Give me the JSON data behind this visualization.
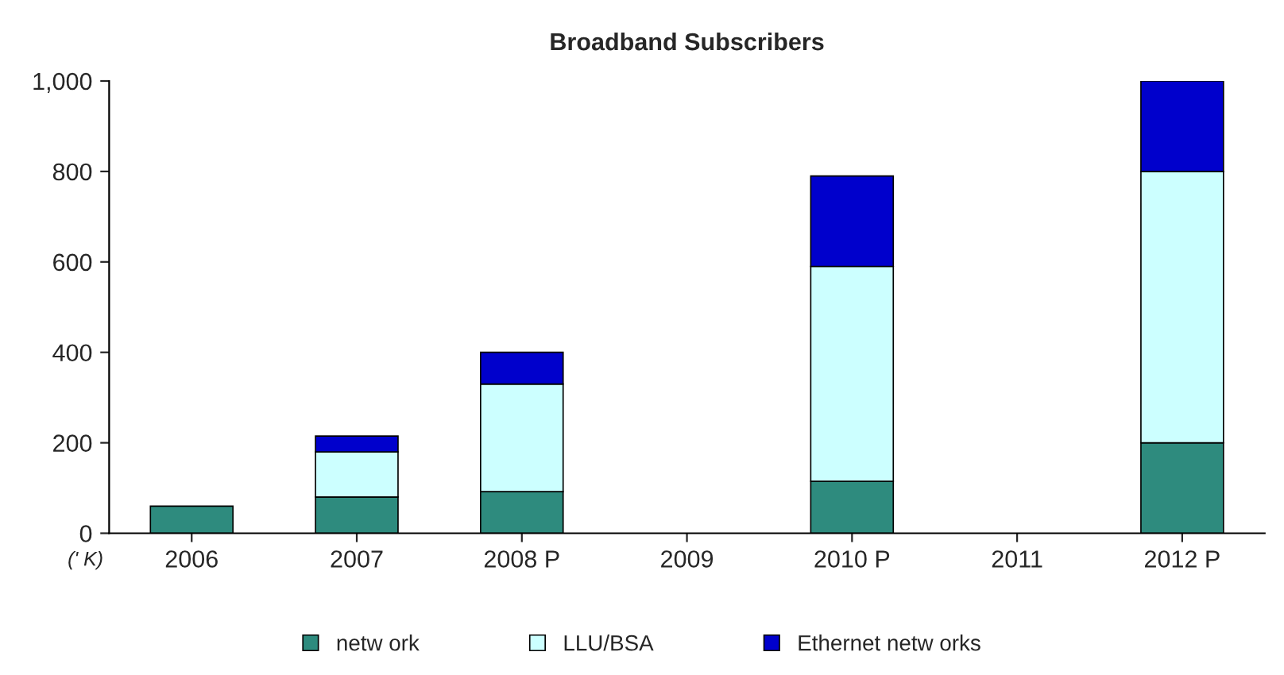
{
  "chart_data": {
    "type": "bar",
    "title": "Broadband Subscribers",
    "stacked": true,
    "categories": [
      "2006",
      "2007",
      "2008 P",
      "2009",
      "2010 P",
      "2011",
      "2012 P"
    ],
    "series": [
      {
        "name": "netw ork",
        "color": "#2e8b7e",
        "values": [
          60,
          80,
          92,
          null,
          115,
          null,
          200
        ]
      },
      {
        "name": "LLU/BSA",
        "color": "#ccffff",
        "values": [
          null,
          100,
          238,
          null,
          475,
          null,
          600
        ]
      },
      {
        "name": "Ethernet netw orks",
        "color": "#0000cc",
        "values": [
          null,
          35,
          70,
          null,
          200,
          null,
          200
        ]
      }
    ],
    "ylim": [
      0,
      1000
    ],
    "yticks": [
      0,
      200,
      400,
      600,
      800,
      {
        "value": 1000,
        "label": "1,000"
      }
    ],
    "annotations": [
      "(' K)"
    ],
    "grid": false,
    "legend": "bottom"
  }
}
